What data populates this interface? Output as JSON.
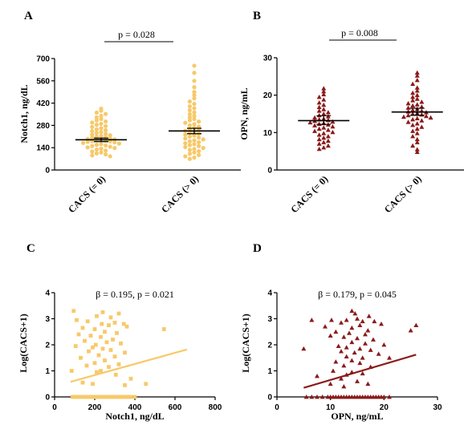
{
  "chart_data": [
    {
      "panel": "A",
      "type": "scatter",
      "ylabel": "Notch1, ng/dL",
      "ylim": [
        0,
        700
      ],
      "yticks": [
        0,
        140,
        280,
        420,
        560,
        700
      ],
      "categories": [
        "CACS (= 0)",
        "CACS (> 0)"
      ],
      "annotation": "p = 0.028",
      "color": "#F7C96A",
      "marker": "circle",
      "groups": [
        {
          "category": "CACS (= 0)",
          "median": 190,
          "ci": [
            178,
            200
          ],
          "values": [
            385,
            372,
            360,
            352,
            340,
            330,
            320,
            312,
            305,
            298,
            290,
            284,
            276,
            270,
            262,
            255,
            250,
            244,
            238,
            232,
            226,
            222,
            218,
            214,
            210,
            206,
            202,
            198,
            195,
            192,
            190,
            188,
            185,
            182,
            180,
            177,
            174,
            170,
            166,
            162,
            158,
            154,
            150,
            146,
            142,
            138,
            133,
            128,
            122,
            116,
            110,
            104,
            98,
            92,
            86
          ]
        },
        {
          "category": "CACS (> 0)",
          "median": 245,
          "ci": [
            228,
            262
          ],
          "values": [
            655,
            610,
            560,
            520,
            490,
            470,
            450,
            430,
            415,
            400,
            388,
            375,
            362,
            350,
            340,
            330,
            320,
            312,
            304,
            296,
            288,
            280,
            272,
            265,
            258,
            252,
            246,
            240,
            234,
            228,
            222,
            216,
            210,
            204,
            198,
            192,
            186,
            180,
            174,
            168,
            162,
            156,
            150,
            144,
            138,
            132,
            126,
            118,
            110,
            102,
            94,
            86,
            78,
            70
          ]
        }
      ]
    },
    {
      "panel": "B",
      "type": "scatter",
      "ylabel": "OPN, ng/mL",
      "ylim": [
        0,
        30
      ],
      "yticks": [
        0,
        10,
        20,
        30
      ],
      "categories": [
        "CACS (= 0)",
        "CACS (> 0)"
      ],
      "annotation": "p = 0.008",
      "color": "#8B1A1A",
      "marker": "triangle",
      "groups": [
        {
          "category": "CACS (= 0)",
          "median": 13.2,
          "ci": [
            12.2,
            14.5
          ],
          "values": [
            21.8,
            21.0,
            20.2,
            19.5,
            18.8,
            18.0,
            17.4,
            16.8,
            16.2,
            15.8,
            15.4,
            15.0,
            14.6,
            14.3,
            14.0,
            13.7,
            13.5,
            13.3,
            13.1,
            12.9,
            12.7,
            12.5,
            12.3,
            12.1,
            11.9,
            11.6,
            11.3,
            11.0,
            10.7,
            10.4,
            10.1,
            9.8,
            9.4,
            9.0,
            8.6,
            8.2,
            7.8,
            7.4,
            7.0,
            6.5,
            6.0,
            5.6
          ]
        },
        {
          "category": "CACS (> 0)",
          "median": 15.5,
          "ci": [
            14.6,
            16.5
          ],
          "values": [
            26.0,
            25.2,
            24.0,
            23.0,
            22.0,
            21.2,
            20.6,
            20.0,
            19.5,
            19.0,
            18.6,
            18.2,
            17.8,
            17.5,
            17.2,
            16.9,
            16.6,
            16.3,
            16.0,
            15.8,
            15.6,
            15.4,
            15.2,
            15.0,
            14.8,
            14.6,
            14.4,
            14.2,
            14.0,
            13.8,
            13.5,
            13.2,
            12.8,
            12.4,
            12.0,
            11.5,
            11.0,
            10.4,
            9.8,
            9.0,
            8.2,
            7.4,
            6.5,
            5.5,
            4.8
          ]
        }
      ]
    },
    {
      "panel": "C",
      "type": "scatter",
      "xlabel": "Notch1, ng/dL",
      "ylabel": "Log(CACS+1)",
      "xlim": [
        0,
        800
      ],
      "xticks": [
        0,
        200,
        400,
        600,
        800
      ],
      "ylim": [
        0,
        4
      ],
      "yticks": [
        0,
        1,
        2,
        3,
        4
      ],
      "annotation": "β = 0.195, p = 0.021",
      "color": "#F7C96A",
      "marker": "square",
      "fit_line": {
        "x": [
          80,
          660
        ],
        "y": [
          0.58,
          1.82
        ]
      },
      "points": [
        [
          95,
          3.3
        ],
        [
          240,
          3.25
        ],
        [
          320,
          3.2
        ],
        [
          210,
          3.1
        ],
        [
          280,
          3.05
        ],
        [
          110,
          2.95
        ],
        [
          165,
          2.9
        ],
        [
          300,
          2.85
        ],
        [
          235,
          2.8
        ],
        [
          345,
          2.8
        ],
        [
          270,
          2.75
        ],
        [
          360,
          2.7
        ],
        [
          140,
          2.65
        ],
        [
          200,
          2.6
        ],
        [
          545,
          2.6
        ],
        [
          250,
          2.5
        ],
        [
          310,
          2.45
        ],
        [
          120,
          2.4
        ],
        [
          180,
          2.35
        ],
        [
          230,
          2.3
        ],
        [
          290,
          2.2
        ],
        [
          150,
          2.15
        ],
        [
          260,
          2.1
        ],
        [
          330,
          2.05
        ],
        [
          205,
          2.0
        ],
        [
          105,
          1.95
        ],
        [
          190,
          1.9
        ],
        [
          240,
          1.85
        ],
        [
          280,
          1.8
        ],
        [
          170,
          1.75
        ],
        [
          350,
          1.7
        ],
        [
          220,
          1.6
        ],
        [
          300,
          1.55
        ],
        [
          130,
          1.5
        ],
        [
          250,
          1.4
        ],
        [
          200,
          1.3
        ],
        [
          320,
          1.25
        ],
        [
          160,
          1.2
        ],
        [
          270,
          1.15
        ],
        [
          85,
          1.0
        ],
        [
          230,
          1.0
        ],
        [
          210,
          0.95
        ],
        [
          305,
          0.85
        ],
        [
          380,
          0.7
        ],
        [
          140,
          0.55
        ],
        [
          190,
          0.5
        ],
        [
          455,
          0.5
        ],
        [
          350,
          0.45
        ],
        [
          90,
          0
        ],
        [
          100,
          0
        ],
        [
          110,
          0
        ],
        [
          120,
          0
        ],
        [
          130,
          0
        ],
        [
          140,
          0
        ],
        [
          150,
          0
        ],
        [
          160,
          0
        ],
        [
          170,
          0
        ],
        [
          180,
          0
        ],
        [
          190,
          0
        ],
        [
          200,
          0
        ],
        [
          210,
          0
        ],
        [
          220,
          0
        ],
        [
          230,
          0
        ],
        [
          240,
          0
        ],
        [
          250,
          0
        ],
        [
          260,
          0
        ],
        [
          270,
          0
        ],
        [
          280,
          0
        ],
        [
          290,
          0
        ],
        [
          300,
          0
        ],
        [
          310,
          0
        ],
        [
          320,
          0
        ],
        [
          330,
          0
        ],
        [
          340,
          0
        ],
        [
          350,
          0
        ],
        [
          360,
          0
        ],
        [
          370,
          0
        ],
        [
          380,
          0
        ],
        [
          400,
          0
        ]
      ]
    },
    {
      "panel": "D",
      "type": "scatter",
      "xlabel": "OPN, ng/mL",
      "ylabel": "Log(CACS+1)",
      "xlim": [
        0,
        30
      ],
      "xticks": [
        0,
        10,
        20,
        30
      ],
      "ylim": [
        0,
        4
      ],
      "yticks": [
        0,
        1,
        2,
        3,
        4
      ],
      "annotation": "β = 0.179, p = 0.045",
      "color": "#8B1A1A",
      "marker": "triangle",
      "fit_line": {
        "x": [
          5,
          26
        ],
        "y": [
          0.35,
          1.62
        ]
      },
      "points": [
        [
          14.0,
          3.3
        ],
        [
          14.6,
          3.2
        ],
        [
          17.2,
          3.1
        ],
        [
          15.0,
          3.0
        ],
        [
          6.5,
          2.95
        ],
        [
          10.2,
          2.95
        ],
        [
          13.0,
          2.95
        ],
        [
          16.0,
          2.9
        ],
        [
          18.2,
          2.9
        ],
        [
          12.0,
          2.85
        ],
        [
          19.5,
          2.8
        ],
        [
          15.5,
          2.75
        ],
        [
          26.0,
          2.75
        ],
        [
          9.0,
          2.7
        ],
        [
          14.0,
          2.65
        ],
        [
          17.0,
          2.55
        ],
        [
          25.0,
          2.55
        ],
        [
          11.0,
          2.5
        ],
        [
          13.5,
          2.45
        ],
        [
          16.5,
          2.4
        ],
        [
          10.0,
          2.35
        ],
        [
          12.5,
          2.3
        ],
        [
          15.0,
          2.25
        ],
        [
          18.0,
          2.2
        ],
        [
          14.0,
          2.1
        ],
        [
          16.5,
          2.05
        ],
        [
          20.0,
          2.0
        ],
        [
          11.5,
          1.95
        ],
        [
          13.0,
          1.9
        ],
        [
          15.5,
          1.85
        ],
        [
          5.0,
          1.85
        ],
        [
          17.5,
          1.8
        ],
        [
          12.0,
          1.75
        ],
        [
          14.5,
          1.7
        ],
        [
          19.0,
          1.65
        ],
        [
          13.0,
          1.55
        ],
        [
          16.0,
          1.5
        ],
        [
          21.0,
          1.5
        ],
        [
          14.0,
          1.4
        ],
        [
          11.0,
          1.35
        ],
        [
          15.5,
          1.3
        ],
        [
          12.5,
          1.2
        ],
        [
          17.5,
          1.15
        ],
        [
          10.5,
          1.0
        ],
        [
          14.0,
          0.95
        ],
        [
          16.0,
          0.9
        ],
        [
          13.0,
          0.85
        ],
        [
          7.5,
          0.8
        ],
        [
          12.0,
          0.7
        ],
        [
          15.0,
          0.6
        ],
        [
          10.0,
          0.5
        ],
        [
          17.0,
          0.5
        ],
        [
          12.5,
          0.4
        ],
        [
          5.5,
          0
        ],
        [
          6.5,
          0
        ],
        [
          7.5,
          0
        ],
        [
          8.5,
          0
        ],
        [
          9.5,
          0
        ],
        [
          10.0,
          0
        ],
        [
          10.5,
          0
        ],
        [
          11.0,
          0
        ],
        [
          11.5,
          0
        ],
        [
          12.0,
          0
        ],
        [
          12.5,
          0
        ],
        [
          13.0,
          0
        ],
        [
          13.5,
          0
        ],
        [
          14.0,
          0
        ],
        [
          14.5,
          0
        ],
        [
          15.0,
          0
        ],
        [
          15.5,
          0
        ],
        [
          16.0,
          0
        ],
        [
          16.5,
          0
        ],
        [
          17.0,
          0
        ],
        [
          17.5,
          0
        ],
        [
          18.0,
          0
        ],
        [
          18.5,
          0
        ],
        [
          19.0,
          0
        ],
        [
          19.5,
          0
        ],
        [
          20.0,
          0
        ],
        [
          21.0,
          0
        ]
      ]
    }
  ]
}
